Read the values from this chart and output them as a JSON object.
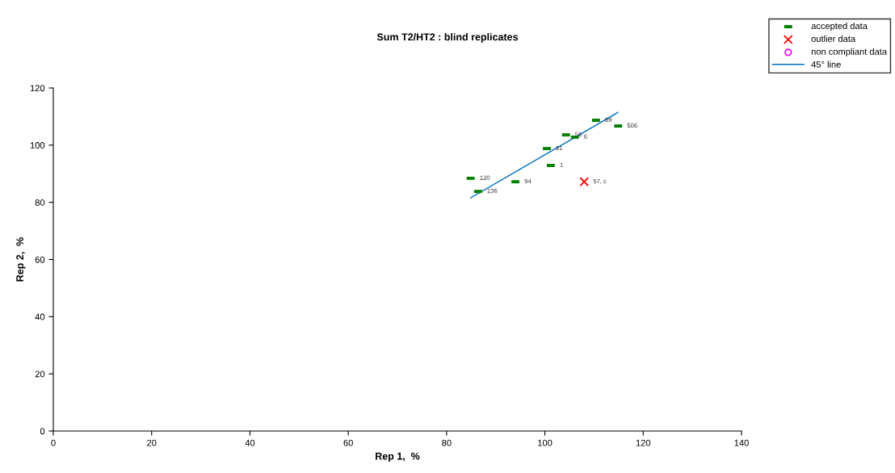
{
  "chart_data": {
    "type": "scatter",
    "title": "Sum T2/HT2 : blind replicates",
    "xlabel": "Rep 1,  %",
    "ylabel": "Rep 2,  %",
    "xlim": [
      0,
      140
    ],
    "xticks": [
      0,
      20,
      40,
      60,
      80,
      100,
      120,
      140
    ],
    "ylim": [
      0,
      120
    ],
    "yticks": [
      0,
      20,
      40,
      60,
      80,
      100,
      120
    ],
    "grid": false,
    "legend": "top right",
    "series": [
      {
        "name": "accepted data",
        "color": "#008000",
        "marker": "square",
        "x": [
          84.9,
          86.4,
          94.0,
          101.2,
          100.4,
          104.3,
          106.1,
          110.4,
          114.9
        ],
        "values": [
          88.4,
          83.8,
          87.2,
          92.9,
          98.8,
          103.6,
          102.8,
          108.7,
          106.7
        ]
      },
      {
        "name": "outlier data",
        "color": "#ff0000",
        "marker": "cross",
        "x": [
          108.0
        ],
        "values": [
          87.2
        ]
      },
      {
        "name": "non compliant data",
        "color": "#ff00ff",
        "marker": "circle"
      },
      {
        "name": "45° line",
        "type": "line",
        "color": "#0070c0",
        "marker": "none",
        "x": [
          84.9,
          114.9
        ],
        "values": [
          81.6,
          111.5
        ]
      }
    ],
    "annotations": [
      {
        "text": "120",
        "x": 84.9,
        "y": 88.4
      },
      {
        "text": "136",
        "x": 86.4,
        "y": 83.8
      },
      {
        "text": "94",
        "x": 94.0,
        "y": 87.2
      },
      {
        "text": "1",
        "x": 101.2,
        "y": 92.9
      },
      {
        "text": "81",
        "x": 100.4,
        "y": 98.8
      },
      {
        "text": "56",
        "x": 104.3,
        "y": 103.6
      },
      {
        "text": "6",
        "x": 106.1,
        "y": 102.8
      },
      {
        "text": "89",
        "x": 110.4,
        "y": 108.7
      },
      {
        "text": "506",
        "x": 114.9,
        "y": 106.7
      },
      {
        "text": "57, c",
        "x": 108.0,
        "y": 87.2
      }
    ]
  }
}
